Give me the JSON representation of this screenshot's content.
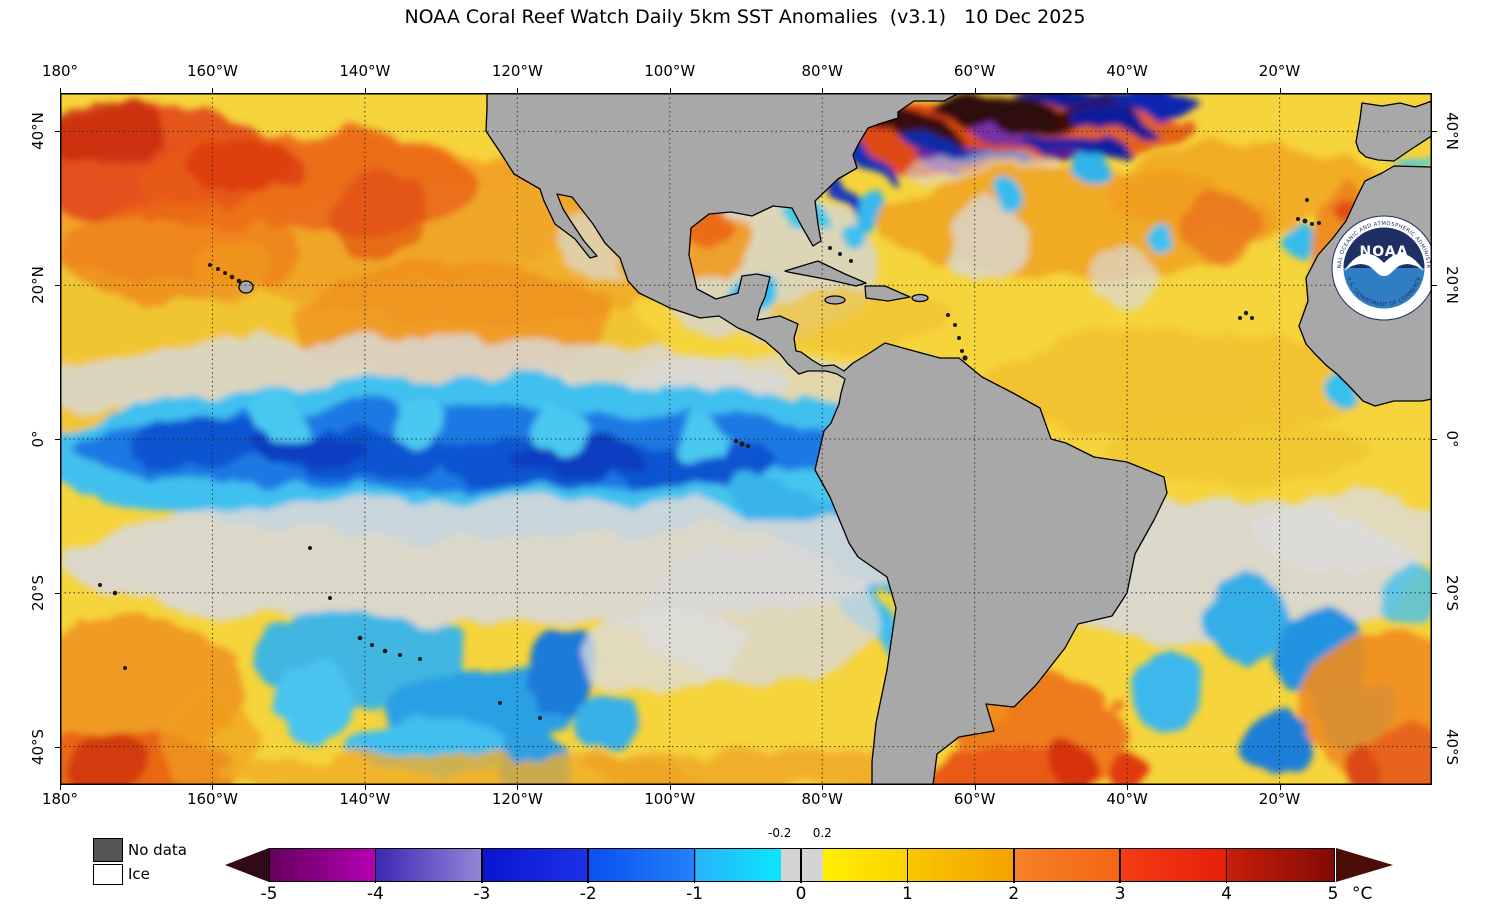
{
  "title": "NOAA Coral Reef Watch Daily 5km SST Anomalies  (v3.1)   10 Dec 2025",
  "map": {
    "lon_labels": [
      "180°",
      "160°W",
      "140°W",
      "120°W",
      "100°W",
      "80°W",
      "60°W",
      "40°W",
      "20°W"
    ],
    "lat_labels": [
      "40°N",
      "20°N",
      "0°",
      "20°S",
      "40°S"
    ],
    "land_color": "#a8a8a8",
    "coast_color": "#000000",
    "neutral_color": "#d6d6d6"
  },
  "legend": {
    "no_data_label": "No data",
    "no_data_color": "#555555",
    "ice_label": "Ice",
    "ice_color": "#ffffff"
  },
  "colorbar": {
    "unit": "°C",
    "min": -5,
    "max": 5,
    "ticks": [
      {
        "v": -5,
        "label": "-5"
      },
      {
        "v": -4,
        "label": "-4"
      },
      {
        "v": -3,
        "label": "-3"
      },
      {
        "v": -2,
        "label": "-2"
      },
      {
        "v": -1,
        "label": "-1"
      },
      {
        "v": 0,
        "label": "0"
      },
      {
        "v": 1,
        "label": "1"
      },
      {
        "v": 2,
        "label": "2"
      },
      {
        "v": 3,
        "label": "3"
      },
      {
        "v": 4,
        "label": "4"
      },
      {
        "v": 5,
        "label": "5"
      }
    ],
    "sub_ticks": [
      {
        "v": -0.2,
        "label": "-0.2"
      },
      {
        "v": 0.2,
        "label": "0.2"
      }
    ],
    "divider_values": [
      -4,
      -3,
      -2,
      -1,
      0,
      1,
      2,
      3,
      4
    ],
    "segments": [
      {
        "from": -5,
        "to": -4,
        "c1": "#66005e",
        "c2": "#b400b4"
      },
      {
        "from": -4,
        "to": -3,
        "c1": "#3c28b4",
        "c2": "#9488d8"
      },
      {
        "from": -3,
        "to": -2,
        "c1": "#0a14d2",
        "c2": "#1e32e6"
      },
      {
        "from": -2,
        "to": -1,
        "c1": "#0a50f0",
        "c2": "#2382f8"
      },
      {
        "from": -1,
        "to": -0.2,
        "c1": "#28b4f8",
        "c2": "#0ae6ff"
      },
      {
        "from": -0.2,
        "to": 0.2,
        "c1": "#d4d4d4",
        "c2": "#d4d4d4"
      },
      {
        "from": 0.2,
        "to": 1,
        "c1": "#fff000",
        "c2": "#fcd200"
      },
      {
        "from": 1,
        "to": 2,
        "c1": "#f8c800",
        "c2": "#f5a000"
      },
      {
        "from": 2,
        "to": 3,
        "c1": "#f58228",
        "c2": "#f56414"
      },
      {
        "from": 3,
        "to": 4,
        "c1": "#f53c14",
        "c2": "#e61e0a"
      },
      {
        "from": 4,
        "to": 5,
        "c1": "#c81e0a",
        "c2": "#820a05"
      }
    ],
    "left_arrow_color": "#300a18",
    "right_arrow_color": "#4a0d08"
  },
  "logo": {
    "label": "NOAA",
    "top_text": "NATIONAL OCEANIC AND ATMOSPHERIC ADMINISTRATION",
    "bottom_text": "U.S. DEPARTMENT OF COMMERCE"
  }
}
